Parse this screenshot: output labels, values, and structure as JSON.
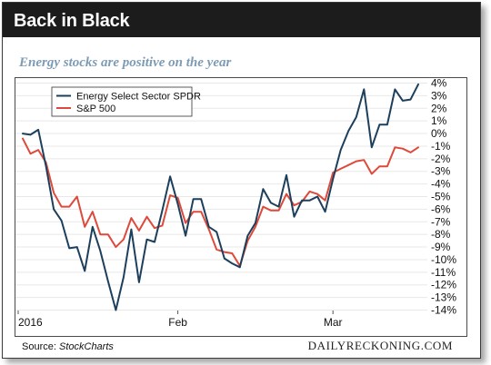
{
  "header": {
    "title": "Back in Black"
  },
  "footer": {
    "source_label": "Source:",
    "source_name": "StockCharts",
    "credit": "DAILYRECKONING.COM"
  },
  "colors": {
    "energy": "#1d3f5c",
    "sp500": "#dd4a3c",
    "grid": "#e8e8e8"
  },
  "chart_data": {
    "type": "line",
    "title": "Energy stocks are positive on the year",
    "x_ticks": [
      {
        "label": "2016",
        "index": 0
      },
      {
        "label": "Feb",
        "index": 20
      },
      {
        "label": "Mar",
        "index": 40
      }
    ],
    "y_ticks": [
      "4%",
      "3%",
      "2%",
      "1%",
      "0%",
      "-1%",
      "-2%",
      "-3%",
      "-4%",
      "-5%",
      "-6%",
      "-7%",
      "-8%",
      "-9%",
      "-10%",
      "-11%",
      "-12%",
      "-13%",
      "-14%"
    ],
    "ylim": [
      -14,
      4
    ],
    "grid": true,
    "legend_position": "top-left",
    "series": [
      {
        "name": "Energy Select Sector SPDR",
        "color": "#1d3f5c",
        "values": [
          0.0,
          -0.1,
          0.3,
          -2.6,
          -6.0,
          -6.9,
          -9.1,
          -9.0,
          -10.9,
          -7.4,
          -9.3,
          -11.7,
          -14.0,
          -11.4,
          -7.6,
          -11.8,
          -8.4,
          -8.6,
          -6.1,
          -3.4,
          -5.6,
          -8.1,
          -5.2,
          -5.2,
          -7.4,
          -7.8,
          -9.9,
          -10.3,
          -10.6,
          -8.1,
          -7.1,
          -4.4,
          -5.5,
          -5.8,
          -3.3,
          -6.6,
          -5.3,
          -5.3,
          -5.0,
          -6.2,
          -3.6,
          -1.3,
          0.2,
          1.3,
          3.5,
          -1.1,
          0.7,
          0.7,
          3.5,
          2.6,
          2.7,
          3.9
        ]
      },
      {
        "name": "S&P 500",
        "color": "#dd4a3c",
        "values": [
          -0.4,
          -1.6,
          -1.3,
          -2.3,
          -4.7,
          -5.8,
          -5.8,
          -5.0,
          -7.4,
          -6.2,
          -8.0,
          -8.0,
          -9.0,
          -8.4,
          -6.7,
          -7.7,
          -6.6,
          -7.5,
          -7.3,
          -4.9,
          -5.1,
          -7.1,
          -6.2,
          -6.2,
          -7.6,
          -9.2,
          -9.4,
          -9.5,
          -10.5,
          -8.5,
          -7.4,
          -5.8,
          -6.1,
          -6.1,
          -4.8,
          -5.7,
          -5.4,
          -4.6,
          -4.8,
          -5.3,
          -3.1,
          -2.8,
          -2.5,
          -2.2,
          -2.1,
          -3.2,
          -2.6,
          -2.6,
          -1.1,
          -1.2,
          -1.5,
          -1.1
        ]
      }
    ]
  }
}
